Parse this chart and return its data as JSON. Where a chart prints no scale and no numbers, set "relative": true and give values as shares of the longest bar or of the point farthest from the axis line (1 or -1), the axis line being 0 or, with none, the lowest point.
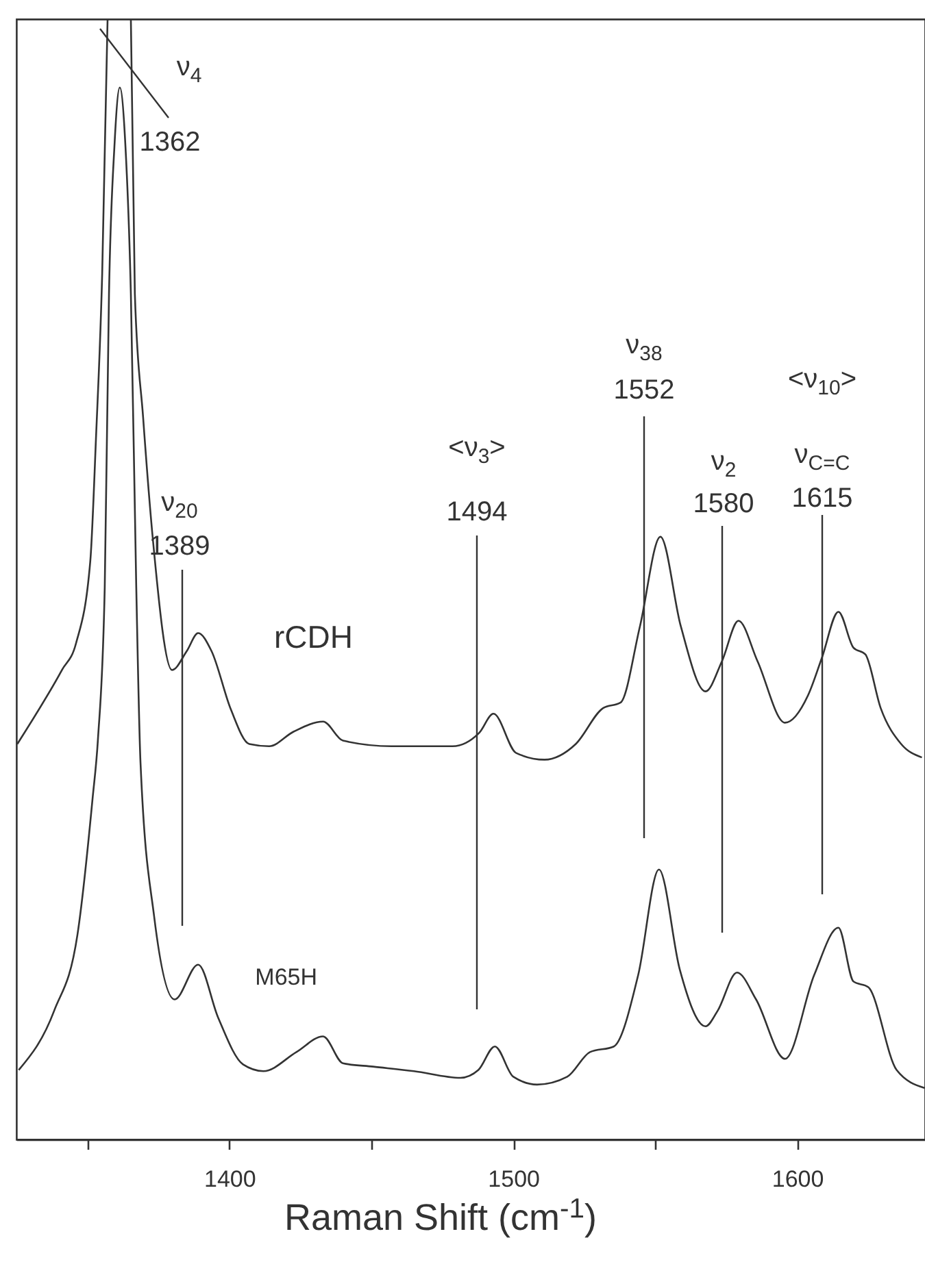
{
  "chart_data": {
    "type": "line",
    "relative": true,
    "xlabel": "Raman Shift (cm$^{-1}$)",
    "xlim": [
      1325,
      1645
    ],
    "xticks": [
      {
        "value": 1350,
        "label": null
      },
      1400,
      {
        "value": 1450,
        "label": null
      },
      1500,
      {
        "value": 1550,
        "label": null
      },
      1600
    ],
    "series": [
      {
        "name": "rCDH",
        "color": "#333333",
        "x": [
          1325.3,
          1341,
          1346,
          1351,
          1353,
          1355.2,
          1357.1,
          1361,
          1365.3,
          1366.7,
          1369.6,
          1373,
          1379.8,
          1385,
          1389,
          1393.7,
          1400.5,
          1407,
          1414,
          1422.6,
          1433,
          1440,
          1457,
          1478.6,
          1488,
          1493,
          1501,
          1511,
          1522,
          1531.6,
          1537.8,
          1544.6,
          1551.8,
          1559,
          1567.7,
          1573.5,
          1579.3,
          1586,
          1595.7,
          1603.9,
          1608.7,
          1614.5,
          1619.8,
          1624,
          1629.4,
          1636.6,
          1643.9
        ],
        "values": [
          0.353,
          0.419,
          0.443,
          0.516,
          0.625,
          0.773,
          1.0,
          null,
          1.0,
          0.755,
          0.645,
          0.537,
          0.419,
          0.436,
          0.452,
          0.436,
          0.384,
          0.353,
          0.351,
          0.364,
          0.373,
          0.356,
          0.351,
          0.351,
          0.363,
          0.38,
          0.345,
          0.339,
          0.353,
          0.385,
          0.39,
          0.458,
          0.538,
          0.458,
          0.4,
          0.427,
          0.463,
          0.427,
          0.372,
          0.397,
          0.43,
          0.471,
          0.439,
          0.433,
          0.385,
          0.353,
          0.341
        ]
      },
      {
        "name": "M65H",
        "color": "#333333",
        "x": [
          1325.8,
          1338.3,
          1346.5,
          1351.8,
          1353.7,
          1356.1,
          1357.6,
          1359.5,
          1361.4,
          1363.4,
          1365.3,
          1367.2,
          1368.7,
          1373.5,
          1380.7,
          1389,
          1396,
          1404.8,
          1412,
          1423.6,
          1433,
          1440,
          1450.6,
          1465,
          1481.4,
          1487.7,
          1493.5,
          1500,
          1508.4,
          1519,
          1527,
          1535.4,
          1544,
          1551.3,
          1558.6,
          1567.7,
          1572,
          1578.8,
          1585.5,
          1595.7,
          1606,
          1614.5,
          1619.8,
          1625,
          1635,
          1644.8
        ],
        "values": [
          0.062,
          0.115,
          0.183,
          0.304,
          0.357,
          0.493,
          0.755,
          0.886,
          0.939,
          0.886,
          0.755,
          0.493,
          0.336,
          0.199,
          0.125,
          0.156,
          0.109,
          0.067,
          0.061,
          0.078,
          0.092,
          0.068,
          0.065,
          0.061,
          0.055,
          0.062,
          0.083,
          0.056,
          0.049,
          0.056,
          0.078,
          0.083,
          0.147,
          0.241,
          0.152,
          0.101,
          0.115,
          0.149,
          0.125,
          0.072,
          0.147,
          0.189,
          0.141,
          0.136,
          0.062,
          0.046
        ]
      }
    ],
    "annotations": [
      "ν$_{4}$",
      "1362",
      "ν$_{20}$",
      "1389",
      "<ν$_{3}$>",
      "1494",
      "ν$_{38}$",
      "1552",
      "ν$_{2}$",
      "1580",
      "<ν$_{10}$>",
      "ν$_{C=C}$",
      "1615"
    ]
  }
}
